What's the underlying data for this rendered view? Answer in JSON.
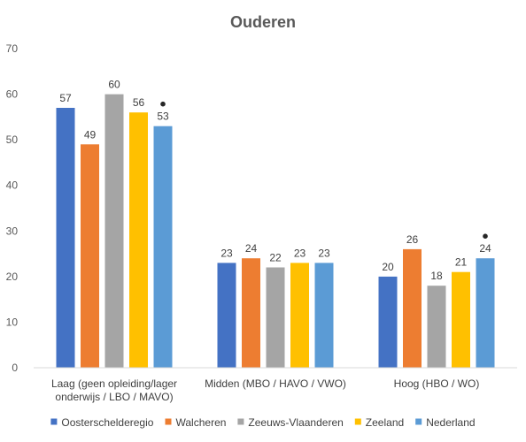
{
  "chart_data": {
    "type": "bar",
    "title": "Ouderen",
    "categories": [
      [
        "Laag (geen opleiding/lager",
        "onderwijs / LBO / MAVO)"
      ],
      [
        "Midden (MBO / HAVO / VWO)"
      ],
      [
        "Hoog (HBO / WO)"
      ]
    ],
    "series": [
      {
        "name": "Oosterschelde目regio",
        "color": "#4472C4",
        "values": [
          57,
          23,
          20
        ]
      },
      {
        "name": "Walcheren",
        "color": "#ED7D31",
        "values": [
          49,
          24,
          26
        ]
      },
      {
        "name": "Zeeuws-Vlaanderen",
        "color": "#A5A5A5",
        "values": [
          60,
          22,
          18
        ]
      },
      {
        "name": "Zeeland",
        "color": "#FFC000",
        "values": [
          56,
          23,
          21
        ]
      },
      {
        "name": "Nederland",
        "color": "#5B9BD5",
        "values": [
          53,
          23,
          24
        ]
      }
    ],
    "significance_markers": [
      {
        "series": "Nederland",
        "category_index": 0,
        "symbol": "•"
      },
      {
        "series": "Nederland",
        "category_index": 2,
        "symbol": "•"
      }
    ],
    "ylim": [
      0,
      70
    ],
    "yticks": [
      0,
      10,
      20,
      30,
      40,
      50,
      60,
      70
    ],
    "xlabel": "",
    "ylabel": "",
    "grid": false,
    "legend_position": "bottom"
  }
}
